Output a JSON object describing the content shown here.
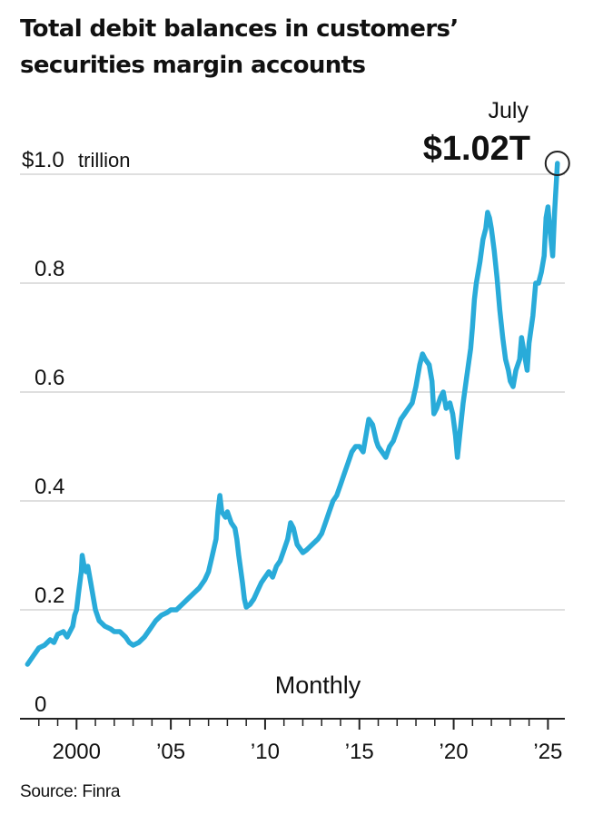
{
  "title_lines": [
    "Total debit balances in customers’",
    "securities margin accounts"
  ],
  "source": "Source: Finra",
  "colors": {
    "line": "#29abd9",
    "grid": "#cccccc",
    "axis": "#222222",
    "text": "#111111"
  },
  "chart_data": {
    "type": "line",
    "title": "Total debit balances in customers’ securities margin accounts",
    "frequency_label": "Monthly",
    "ylabel_unit": "trillion",
    "ylim": [
      0,
      1.05
    ],
    "xlim": [
      1997,
      2025.8
    ],
    "y_ticks": [
      {
        "value": 0,
        "label": "0"
      },
      {
        "value": 0.2,
        "label": "0.2"
      },
      {
        "value": 0.4,
        "label": "0.4"
      },
      {
        "value": 0.6,
        "label": "0.6"
      },
      {
        "value": 0.8,
        "label": "0.8"
      },
      {
        "value": 1.0,
        "label": "$1.0",
        "unit": "trillion"
      }
    ],
    "x_ticks": [
      {
        "value": 2000,
        "label": "2000"
      },
      {
        "value": 2005,
        "label": "’05"
      },
      {
        "value": 2010,
        "label": "’10"
      },
      {
        "value": 2015,
        "label": "’15"
      },
      {
        "value": 2020,
        "label": "’20"
      },
      {
        "value": 2025,
        "label": "’25"
      }
    ],
    "annotation": {
      "month": "July",
      "value_label": "$1.02T",
      "x": 2025.5,
      "y": 1.02
    },
    "series": [
      {
        "name": "Total debit balances",
        "points": [
          [
            1997.4,
            0.1
          ],
          [
            1997.7,
            0.115
          ],
          [
            1998.0,
            0.13
          ],
          [
            1998.3,
            0.135
          ],
          [
            1998.6,
            0.145
          ],
          [
            1998.8,
            0.14
          ],
          [
            1999.0,
            0.155
          ],
          [
            1999.3,
            0.16
          ],
          [
            1999.5,
            0.15
          ],
          [
            1999.8,
            0.17
          ],
          [
            1999.9,
            0.19
          ],
          [
            2000.0,
            0.2
          ],
          [
            2000.1,
            0.23
          ],
          [
            2000.25,
            0.27
          ],
          [
            2000.3,
            0.3
          ],
          [
            2000.4,
            0.28
          ],
          [
            2000.5,
            0.27
          ],
          [
            2000.6,
            0.28
          ],
          [
            2000.75,
            0.25
          ],
          [
            2000.9,
            0.22
          ],
          [
            2001.0,
            0.2
          ],
          [
            2001.2,
            0.18
          ],
          [
            2001.5,
            0.17
          ],
          [
            2001.8,
            0.165
          ],
          [
            2002.0,
            0.16
          ],
          [
            2002.3,
            0.16
          ],
          [
            2002.6,
            0.15
          ],
          [
            2002.8,
            0.14
          ],
          [
            2003.0,
            0.135
          ],
          [
            2003.3,
            0.14
          ],
          [
            2003.6,
            0.15
          ],
          [
            2003.9,
            0.165
          ],
          [
            2004.2,
            0.18
          ],
          [
            2004.5,
            0.19
          ],
          [
            2004.8,
            0.195
          ],
          [
            2005.0,
            0.2
          ],
          [
            2005.3,
            0.2
          ],
          [
            2005.6,
            0.21
          ],
          [
            2005.9,
            0.22
          ],
          [
            2006.2,
            0.23
          ],
          [
            2006.5,
            0.24
          ],
          [
            2006.8,
            0.255
          ],
          [
            2007.0,
            0.27
          ],
          [
            2007.2,
            0.3
          ],
          [
            2007.4,
            0.33
          ],
          [
            2007.5,
            0.38
          ],
          [
            2007.6,
            0.41
          ],
          [
            2007.7,
            0.38
          ],
          [
            2007.9,
            0.37
          ],
          [
            2008.0,
            0.38
          ],
          [
            2008.2,
            0.36
          ],
          [
            2008.4,
            0.35
          ],
          [
            2008.5,
            0.33
          ],
          [
            2008.6,
            0.3
          ],
          [
            2008.8,
            0.25
          ],
          [
            2008.9,
            0.22
          ],
          [
            2009.0,
            0.205
          ],
          [
            2009.2,
            0.21
          ],
          [
            2009.4,
            0.22
          ],
          [
            2009.6,
            0.235
          ],
          [
            2009.8,
            0.25
          ],
          [
            2010.0,
            0.26
          ],
          [
            2010.2,
            0.27
          ],
          [
            2010.4,
            0.26
          ],
          [
            2010.6,
            0.28
          ],
          [
            2010.8,
            0.29
          ],
          [
            2011.0,
            0.31
          ],
          [
            2011.2,
            0.33
          ],
          [
            2011.35,
            0.36
          ],
          [
            2011.5,
            0.35
          ],
          [
            2011.7,
            0.32
          ],
          [
            2011.9,
            0.31
          ],
          [
            2012.0,
            0.305
          ],
          [
            2012.2,
            0.31
          ],
          [
            2012.5,
            0.32
          ],
          [
            2012.8,
            0.33
          ],
          [
            2013.0,
            0.34
          ],
          [
            2013.2,
            0.36
          ],
          [
            2013.4,
            0.38
          ],
          [
            2013.6,
            0.4
          ],
          [
            2013.8,
            0.41
          ],
          [
            2014.0,
            0.43
          ],
          [
            2014.2,
            0.45
          ],
          [
            2014.4,
            0.47
          ],
          [
            2014.6,
            0.49
          ],
          [
            2014.8,
            0.5
          ],
          [
            2015.0,
            0.5
          ],
          [
            2015.2,
            0.49
          ],
          [
            2015.35,
            0.52
          ],
          [
            2015.5,
            0.55
          ],
          [
            2015.7,
            0.54
          ],
          [
            2015.9,
            0.51
          ],
          [
            2016.0,
            0.5
          ],
          [
            2016.2,
            0.49
          ],
          [
            2016.4,
            0.48
          ],
          [
            2016.6,
            0.5
          ],
          [
            2016.8,
            0.51
          ],
          [
            2017.0,
            0.53
          ],
          [
            2017.2,
            0.55
          ],
          [
            2017.4,
            0.56
          ],
          [
            2017.6,
            0.57
          ],
          [
            2017.8,
            0.58
          ],
          [
            2018.0,
            0.61
          ],
          [
            2018.2,
            0.65
          ],
          [
            2018.35,
            0.67
          ],
          [
            2018.5,
            0.66
          ],
          [
            2018.7,
            0.65
          ],
          [
            2018.85,
            0.62
          ],
          [
            2018.95,
            0.56
          ],
          [
            2019.1,
            0.57
          ],
          [
            2019.3,
            0.59
          ],
          [
            2019.45,
            0.6
          ],
          [
            2019.6,
            0.57
          ],
          [
            2019.8,
            0.58
          ],
          [
            2019.95,
            0.56
          ],
          [
            2020.1,
            0.52
          ],
          [
            2020.2,
            0.48
          ],
          [
            2020.35,
            0.53
          ],
          [
            2020.5,
            0.58
          ],
          [
            2020.7,
            0.63
          ],
          [
            2020.9,
            0.68
          ],
          [
            2021.0,
            0.72
          ],
          [
            2021.1,
            0.77
          ],
          [
            2021.2,
            0.8
          ],
          [
            2021.4,
            0.84
          ],
          [
            2021.55,
            0.88
          ],
          [
            2021.7,
            0.9
          ],
          [
            2021.8,
            0.93
          ],
          [
            2021.9,
            0.92
          ],
          [
            2022.0,
            0.9
          ],
          [
            2022.15,
            0.86
          ],
          [
            2022.3,
            0.81
          ],
          [
            2022.45,
            0.75
          ],
          [
            2022.6,
            0.7
          ],
          [
            2022.75,
            0.66
          ],
          [
            2022.9,
            0.64
          ],
          [
            2023.0,
            0.62
          ],
          [
            2023.15,
            0.61
          ],
          [
            2023.3,
            0.64
          ],
          [
            2023.5,
            0.66
          ],
          [
            2023.6,
            0.7
          ],
          [
            2023.75,
            0.67
          ],
          [
            2023.9,
            0.64
          ],
          [
            2024.0,
            0.69
          ],
          [
            2024.2,
            0.74
          ],
          [
            2024.35,
            0.8
          ],
          [
            2024.5,
            0.8
          ],
          [
            2024.65,
            0.82
          ],
          [
            2024.8,
            0.85
          ],
          [
            2024.9,
            0.92
          ],
          [
            2025.0,
            0.94
          ],
          [
            2025.1,
            0.9
          ],
          [
            2025.25,
            0.85
          ],
          [
            2025.35,
            0.93
          ],
          [
            2025.5,
            1.02
          ]
        ]
      }
    ]
  }
}
